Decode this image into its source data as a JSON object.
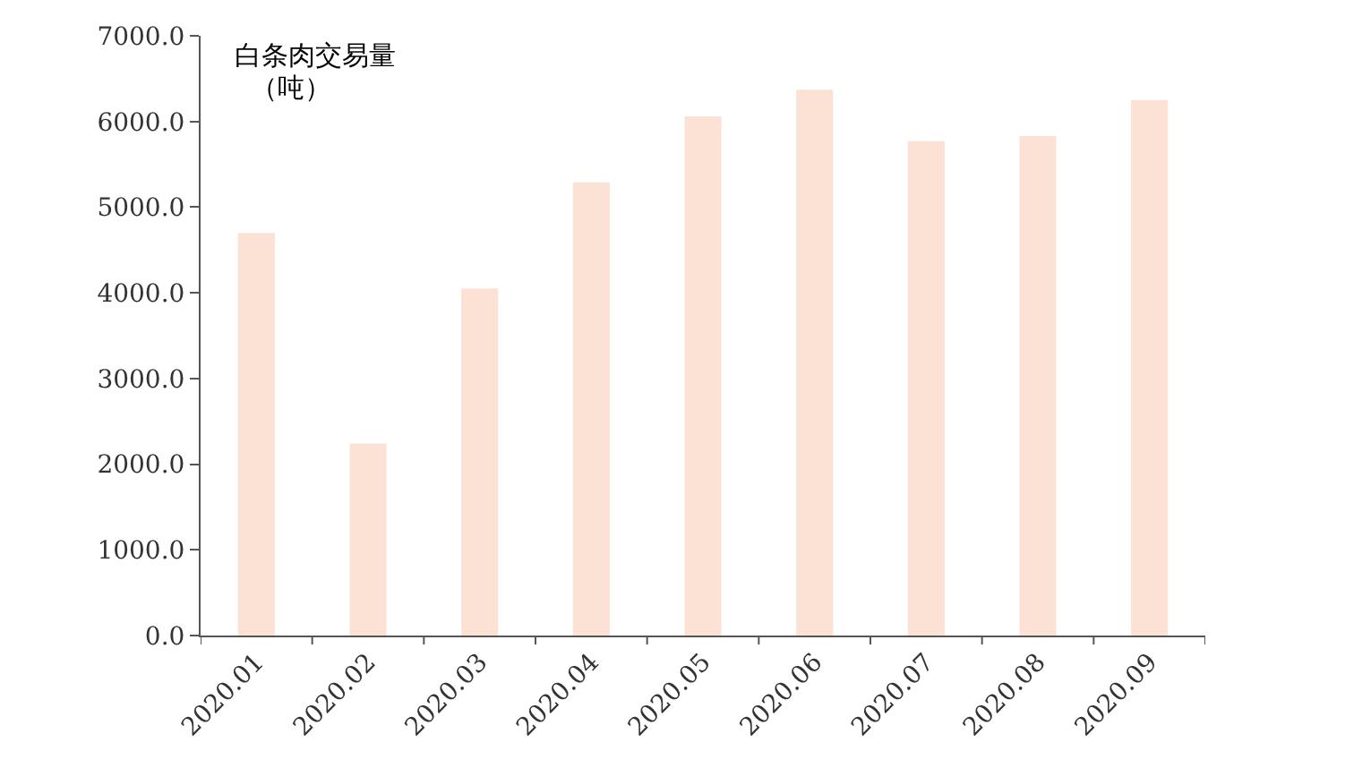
{
  "chart_data": {
    "type": "bar",
    "title": "白条肉交易量",
    "ylabel": "（吨）",
    "categories": [
      "2020.01",
      "2020.02",
      "2020.03",
      "2020.04",
      "2020.05",
      "2020.06",
      "2020.07",
      "2020.08",
      "2020.09"
    ],
    "values": [
      4700,
      2240,
      4050,
      5290,
      6060,
      6370,
      5770,
      5830,
      6250
    ],
    "color": "#fbe2d5",
    "ylim": [
      0,
      7000
    ],
    "yticks": [
      {
        "value": 0,
        "label": "0.0"
      },
      {
        "value": 1000,
        "label": "1000.0"
      },
      {
        "value": 2000,
        "label": "2000.0"
      },
      {
        "value": 3000,
        "label": "3000.0"
      },
      {
        "value": 4000,
        "label": "4000.0"
      },
      {
        "value": 5000,
        "label": "5000.0"
      },
      {
        "value": 6000,
        "label": "6000.0"
      },
      {
        "value": 7000,
        "label": "7000.0"
      }
    ],
    "orientation": "vertical"
  }
}
